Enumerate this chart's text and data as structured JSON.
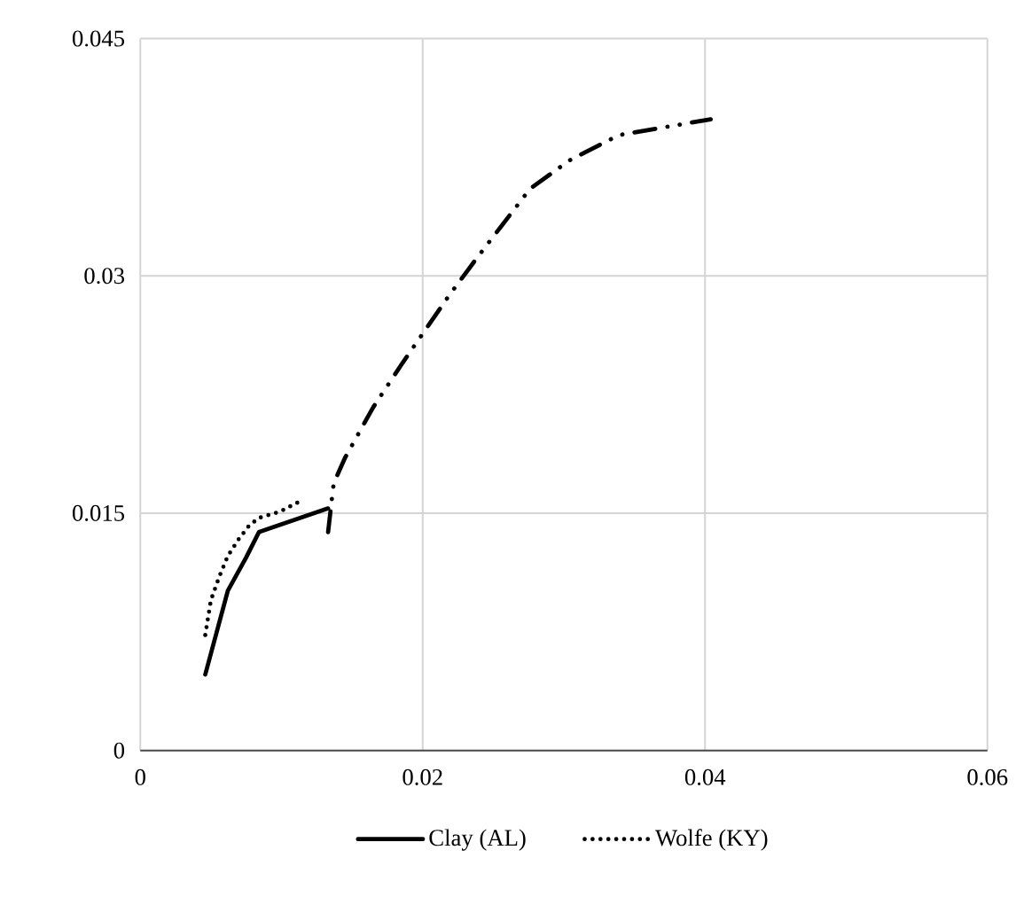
{
  "chart_data": {
    "type": "line",
    "xlim": [
      0,
      0.06
    ],
    "ylim": [
      0,
      0.045
    ],
    "xticks": [
      0,
      0.02,
      0.04,
      0.06
    ],
    "yticks": [
      0,
      0.015,
      0.03,
      0.045
    ],
    "grid": true,
    "legend": "bottom",
    "series": [
      {
        "name": "Clay (AL)",
        "color": "#000000",
        "line_style": "solid",
        "x": [
          0.0046,
          0.0062,
          0.0075,
          0.0084,
          0.0133
        ],
        "values": [
          0.0048,
          0.0101,
          0.0122,
          0.0138,
          0.0153
        ]
      },
      {
        "name": "Wolfe (KY)",
        "color": "#000000",
        "line_style": "dotted",
        "x": [
          0.0046,
          0.005,
          0.0056,
          0.0062,
          0.007,
          0.0077,
          0.0084,
          0.0099,
          0.0112
        ],
        "values": [
          0.0073,
          0.0095,
          0.011,
          0.0123,
          0.0134,
          0.0142,
          0.0147,
          0.0151,
          0.0157
        ]
      },
      {
        "color": "#000000",
        "line_style": "dashed",
        "x": [
          0.0133,
          0.0137,
          0.0145,
          0.0165,
          0.0185,
          0.0219,
          0.0239,
          0.0276,
          0.0304,
          0.0339,
          0.0404
        ],
        "values": [
          0.0138,
          0.0169,
          0.0185,
          0.0217,
          0.0244,
          0.0288,
          0.0312,
          0.0355,
          0.0373,
          0.0389,
          0.0399
        ]
      }
    ]
  }
}
